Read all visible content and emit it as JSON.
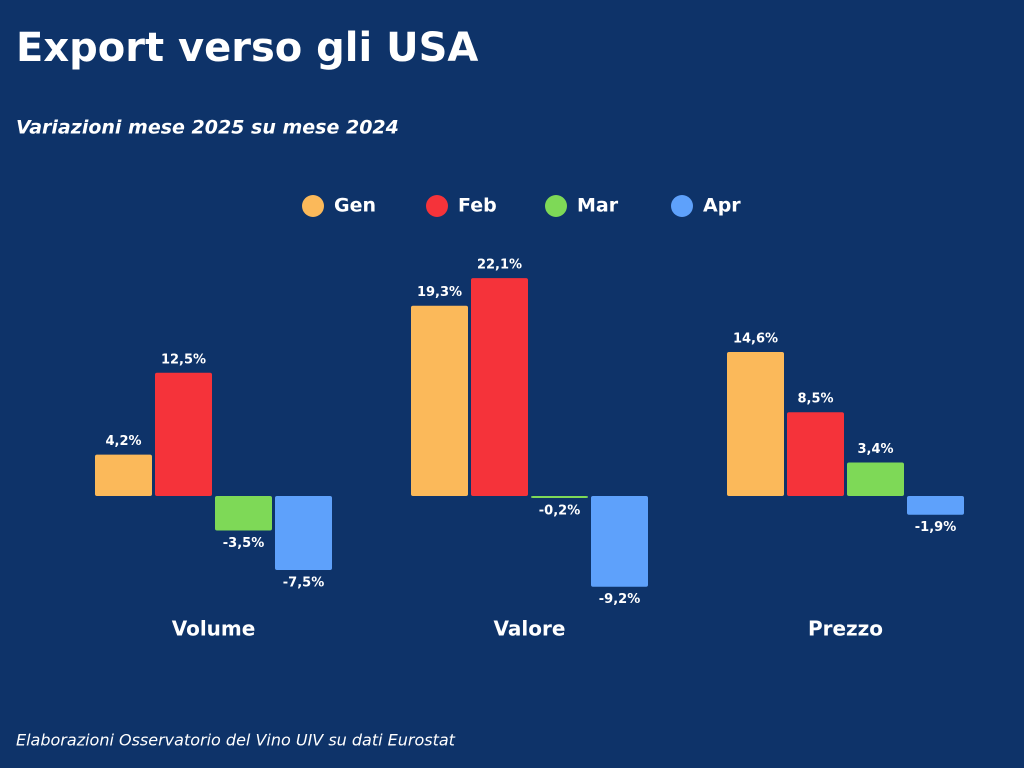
{
  "chart_data": {
    "type": "bar",
    "title": "Export verso gli USA",
    "subtitle": "Variazioni mese 2025 su mese 2024",
    "footer": "Elaborazioni Osservatorio del Vino UIV su dati Eurostat",
    "categories": [
      "Volume",
      "Valore",
      "Prezzo"
    ],
    "series": [
      {
        "name": "Gen",
        "color": "#fbb95a",
        "values": [
          4.2,
          19.3,
          14.6
        ],
        "value_labels": [
          "4,2%",
          "19,3%",
          "14,6%"
        ]
      },
      {
        "name": "Feb",
        "color": "#f5333a",
        "values": [
          12.5,
          22.1,
          8.5
        ],
        "value_labels": [
          "12,5%",
          "22,1%",
          "8,5%"
        ]
      },
      {
        "name": "Mar",
        "color": "#7ed957",
        "values": [
          -3.5,
          -0.2,
          3.4
        ],
        "value_labels": [
          "-3,5%",
          "-0,2%",
          "3,4%"
        ]
      },
      {
        "name": "Apr",
        "color": "#5ea1fb",
        "values": [
          -7.5,
          -9.2,
          -1.9
        ],
        "value_labels": [
          "-7,5%",
          "-9,2%",
          "-1,9%"
        ]
      }
    ]
  }
}
